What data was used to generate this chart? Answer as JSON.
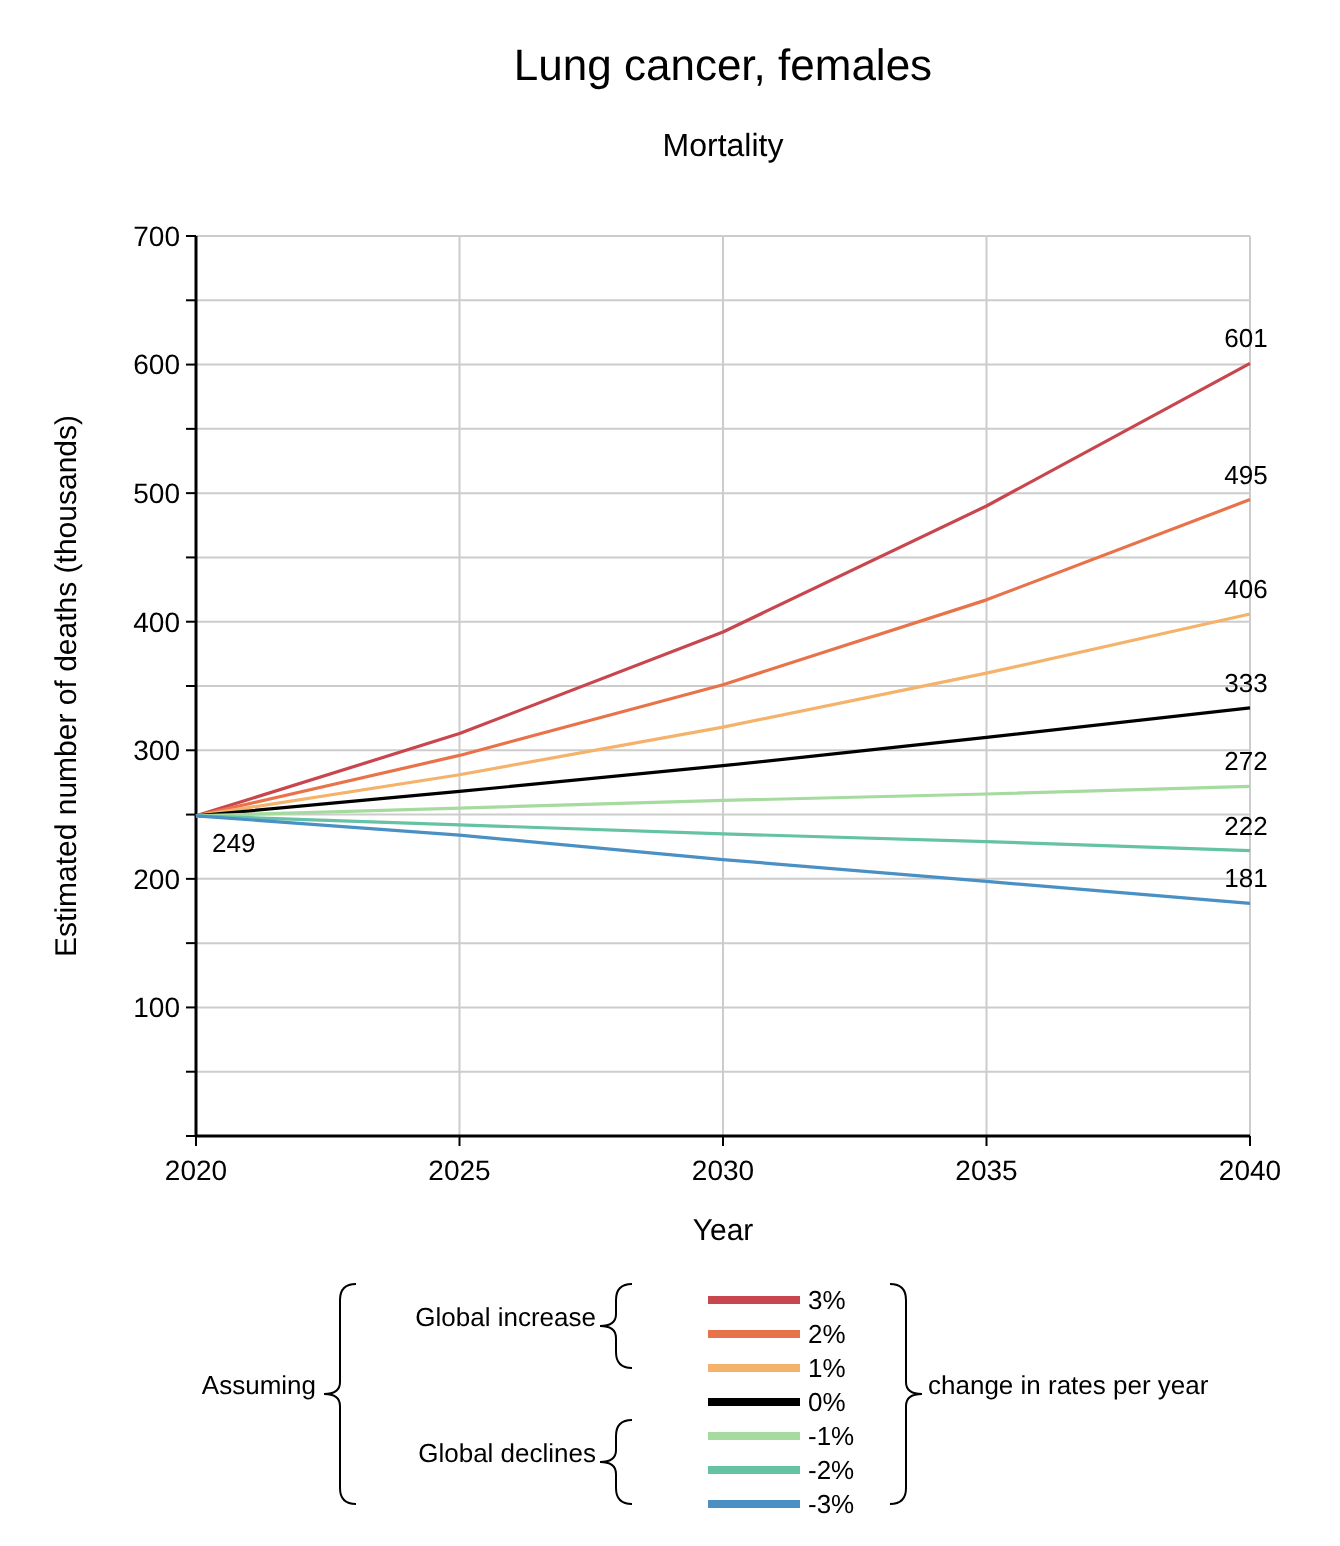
{
  "chart_data": {
    "type": "line",
    "title": "Lung cancer, females",
    "subtitle": "Mortality",
    "xlabel": "Year",
    "ylabel": "Estimated number of deaths (thousands)",
    "x": [
      2020,
      2025,
      2030,
      2035,
      2040
    ],
    "xlim": [
      2020,
      2040
    ],
    "xticks": [
      2020,
      2025,
      2030,
      2035,
      2040
    ],
    "ylim": [
      0,
      700
    ],
    "yticks": [
      {
        "value": 0,
        "label": null
      },
      {
        "value": 50,
        "label": null
      },
      100,
      {
        "value": 150,
        "label": null
      },
      200,
      {
        "value": 250,
        "label": null
      },
      300,
      {
        "value": 350,
        "label": null
      },
      400,
      {
        "value": 450,
        "label": null
      },
      500,
      {
        "value": 550,
        "label": null
      },
      600,
      {
        "value": 650,
        "label": null
      },
      700
    ],
    "grid": true,
    "legend": "bottom",
    "marker": "none",
    "line_style": "solid",
    "series": [
      {
        "name": "3%",
        "color": "#c8464e",
        "values": [
          249,
          313,
          392,
          490,
          601
        ],
        "value_labels": [
          null,
          null,
          null,
          null,
          "601"
        ]
      },
      {
        "name": "2%",
        "color": "#e8734a",
        "values": [
          249,
          296,
          351,
          417,
          495
        ],
        "value_labels": [
          null,
          null,
          null,
          null,
          "495"
        ]
      },
      {
        "name": "1%",
        "color": "#f4b26b",
        "values": [
          249,
          281,
          318,
          360,
          406
        ],
        "value_labels": [
          null,
          null,
          null,
          null,
          "406"
        ]
      },
      {
        "name": "0%",
        "color": "#000000",
        "values": [
          249,
          268,
          288,
          310,
          333
        ],
        "value_labels": [
          "249",
          null,
          null,
          null,
          "333"
        ]
      },
      {
        "name": "-1%",
        "color": "#a6dba0",
        "values": [
          249,
          255,
          261,
          266,
          272
        ],
        "value_labels": [
          null,
          null,
          null,
          null,
          "272"
        ]
      },
      {
        "name": "-2%",
        "color": "#66c2a5",
        "values": [
          249,
          242,
          235,
          229,
          222
        ],
        "value_labels": [
          null,
          null,
          null,
          null,
          "222"
        ]
      },
      {
        "name": "-3%",
        "color": "#4a90c4",
        "values": [
          249,
          234,
          215,
          198,
          181
        ],
        "value_labels": [
          null,
          null,
          null,
          null,
          "181"
        ]
      }
    ],
    "annotations": [
      "Assuming",
      "Global increase",
      "Global declines",
      "change in rates per year"
    ]
  }
}
